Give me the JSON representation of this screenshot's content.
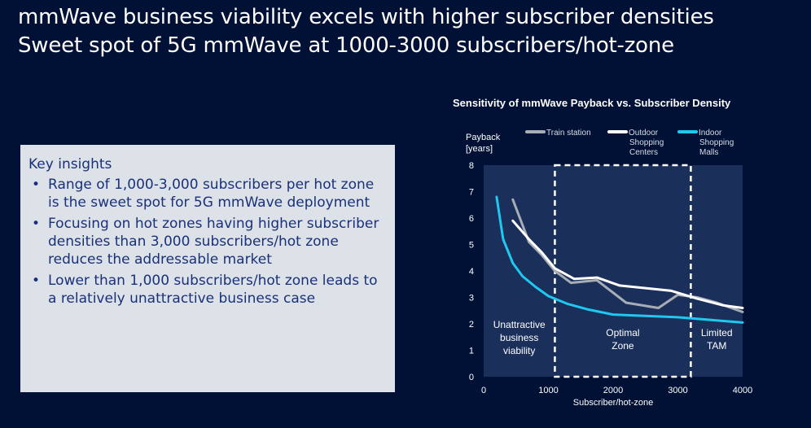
{
  "slide": {
    "title_line1": "mmWave business viability excels with higher subscriber densities",
    "title_line2": "Sweet spot of 5G mmWave at 1000-3000 subscribers/hot-zone"
  },
  "insights": {
    "heading": "Key insights",
    "bullet": "•",
    "items": [
      "Range of 1,000-3,000 subscribers per hot zone is the sweet spot for 5G mmWave deployment",
      "Focusing on hot zones having higher subscriber densities than 3,000 subscribers/hot zone reduces the addressable market",
      "Lower than 1,000 subscribers/hot zone leads to a relatively unattractive business case"
    ]
  },
  "chart_data": {
    "type": "line",
    "title": "Sensitivity of mmWave Payback vs. Subscriber Density",
    "ylabel": "Payback [years]",
    "xlabel": "Subscriber/hot-zone",
    "xlim": [
      0,
      4000
    ],
    "ylim": [
      0,
      8
    ],
    "xticks": [
      0,
      1000,
      2000,
      3000,
      4000
    ],
    "yticks": [
      0,
      1,
      2,
      3,
      4,
      5,
      6,
      7,
      8
    ],
    "legend_position": "top",
    "regions": [
      {
        "x0": 0,
        "x1": 1100,
        "label": "Unattractive business viability"
      },
      {
        "x0": 1100,
        "x1": 3200,
        "label": "Optimal Zone",
        "highlight": "dashed-box"
      },
      {
        "x0": 3200,
        "x1": 4000,
        "label": "Limited TAM"
      }
    ],
    "series": [
      {
        "name": "Train station",
        "color": "#a7adb6",
        "x": [
          450,
          700,
          900,
          1100,
          1350,
          1750,
          2200,
          2700,
          3000,
          3300,
          3600,
          4000
        ],
        "y": [
          6.7,
          5.1,
          4.6,
          4.0,
          3.55,
          3.65,
          2.8,
          2.6,
          3.1,
          3.0,
          2.8,
          2.45
        ]
      },
      {
        "name": "Outdoor Shopping Centers",
        "color": "#ffffff",
        "x": [
          450,
          700,
          900,
          1100,
          1400,
          1750,
          2100,
          2500,
          2900,
          3300,
          3700,
          4000
        ],
        "y": [
          5.9,
          5.2,
          4.7,
          4.1,
          3.7,
          3.75,
          3.45,
          3.35,
          3.25,
          2.95,
          2.7,
          2.6
        ]
      },
      {
        "name": "Indoor Shopping Malls",
        "color": "#1ec8ef",
        "x": [
          200,
          300,
          450,
          600,
          800,
          1000,
          1300,
          1600,
          2000,
          2500,
          3000,
          3500,
          4000
        ],
        "y": [
          6.8,
          5.2,
          4.3,
          3.8,
          3.4,
          3.05,
          2.75,
          2.55,
          2.35,
          2.3,
          2.25,
          2.15,
          2.05
        ]
      }
    ]
  }
}
